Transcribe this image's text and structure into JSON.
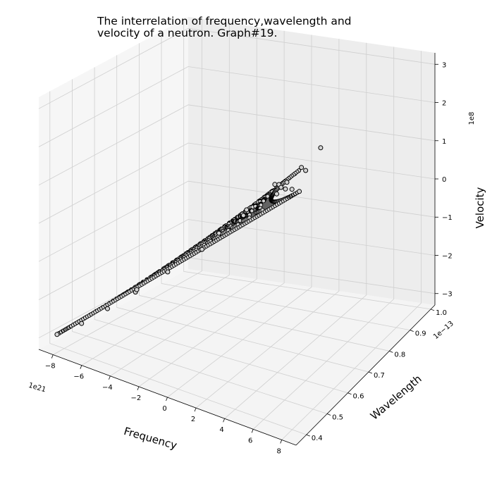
{
  "chart_data": {
    "type": "scatter3d",
    "title_line1": "The interrelation of frequency,wavelength and",
    "title_line2": "velocity of a neutron. Graph#19.",
    "xlabel": "Frequency",
    "ylabel": "Wavelength",
    "zlabel": "Velocity",
    "x_offset_text": "1e21",
    "y_offset_text": "1e−13",
    "z_offset_text": "1e8",
    "xlim": [
      -9,
      9
    ],
    "ylim": [
      0.35,
      1.02
    ],
    "zlim": [
      -3.3,
      3.3
    ],
    "x_ticks": [
      "−8",
      "−6",
      "−4",
      "−2",
      "0",
      "2",
      "4",
      "6",
      "8"
    ],
    "x_tick_values": [
      -8,
      -6,
      -4,
      -2,
      0,
      2,
      4,
      6,
      8
    ],
    "y_ticks": [
      "0.4",
      "0.5",
      "0.6",
      "0.7",
      "0.8",
      "0.9",
      "1.0"
    ],
    "y_tick_values": [
      0.4,
      0.5,
      0.6,
      0.7,
      0.8,
      0.9,
      1.0
    ],
    "z_ticks": [
      "−3",
      "−2",
      "−1",
      "0",
      "1",
      "2",
      "3"
    ],
    "z_tick_values": [
      -3,
      -2,
      -1,
      0,
      1,
      2,
      3
    ],
    "grid": true,
    "marker_color": "#d3d3d3",
    "marker_edge_color": "#000000",
    "pane_color": "#f2f2f2",
    "grid_color": "#cfcfcf",
    "series": [
      {
        "points": [
          {
            "x": -8.5,
            "y": 0.4,
            "z": -3.0
          },
          {
            "x": -7.4,
            "y": 0.44,
            "z": -2.7
          },
          {
            "x": -6.2,
            "y": 0.48,
            "z": -2.3
          },
          {
            "x": -5.0,
            "y": 0.53,
            "z": -1.9
          },
          {
            "x": -3.8,
            "y": 0.6,
            "z": -1.5
          },
          {
            "x": -2.6,
            "y": 0.68,
            "z": -1.1
          },
          {
            "x": -1.5,
            "y": 0.8,
            "z": -0.6
          },
          {
            "x": -0.7,
            "y": 0.95,
            "z": -0.3
          },
          {
            "x": 0.6,
            "y": 0.55,
            "z": 0.2
          },
          {
            "x": 1.5,
            "y": 0.62,
            "z": 0.6
          },
          {
            "x": 2.6,
            "y": 0.68,
            "z": 1.1
          },
          {
            "x": 3.8,
            "y": 0.62,
            "z": 1.5
          },
          {
            "x": 5.0,
            "y": 0.55,
            "z": 1.9
          },
          {
            "x": 6.2,
            "y": 0.49,
            "z": 2.3
          },
          {
            "x": 7.4,
            "y": 0.44,
            "z": 2.7
          },
          {
            "x": 8.5,
            "y": 0.4,
            "z": 3.0
          },
          {
            "x": -1.6,
            "y": 0.96,
            "z": -0.7
          },
          {
            "x": 1.6,
            "y": 0.96,
            "z": 0.7
          },
          {
            "x": 0.2,
            "y": 0.96,
            "z": 0.1
          },
          {
            "x": -6.0,
            "y": 0.6,
            "z": -2.2
          },
          {
            "x": 6.0,
            "y": 0.6,
            "z": 2.2
          }
        ]
      }
    ]
  }
}
